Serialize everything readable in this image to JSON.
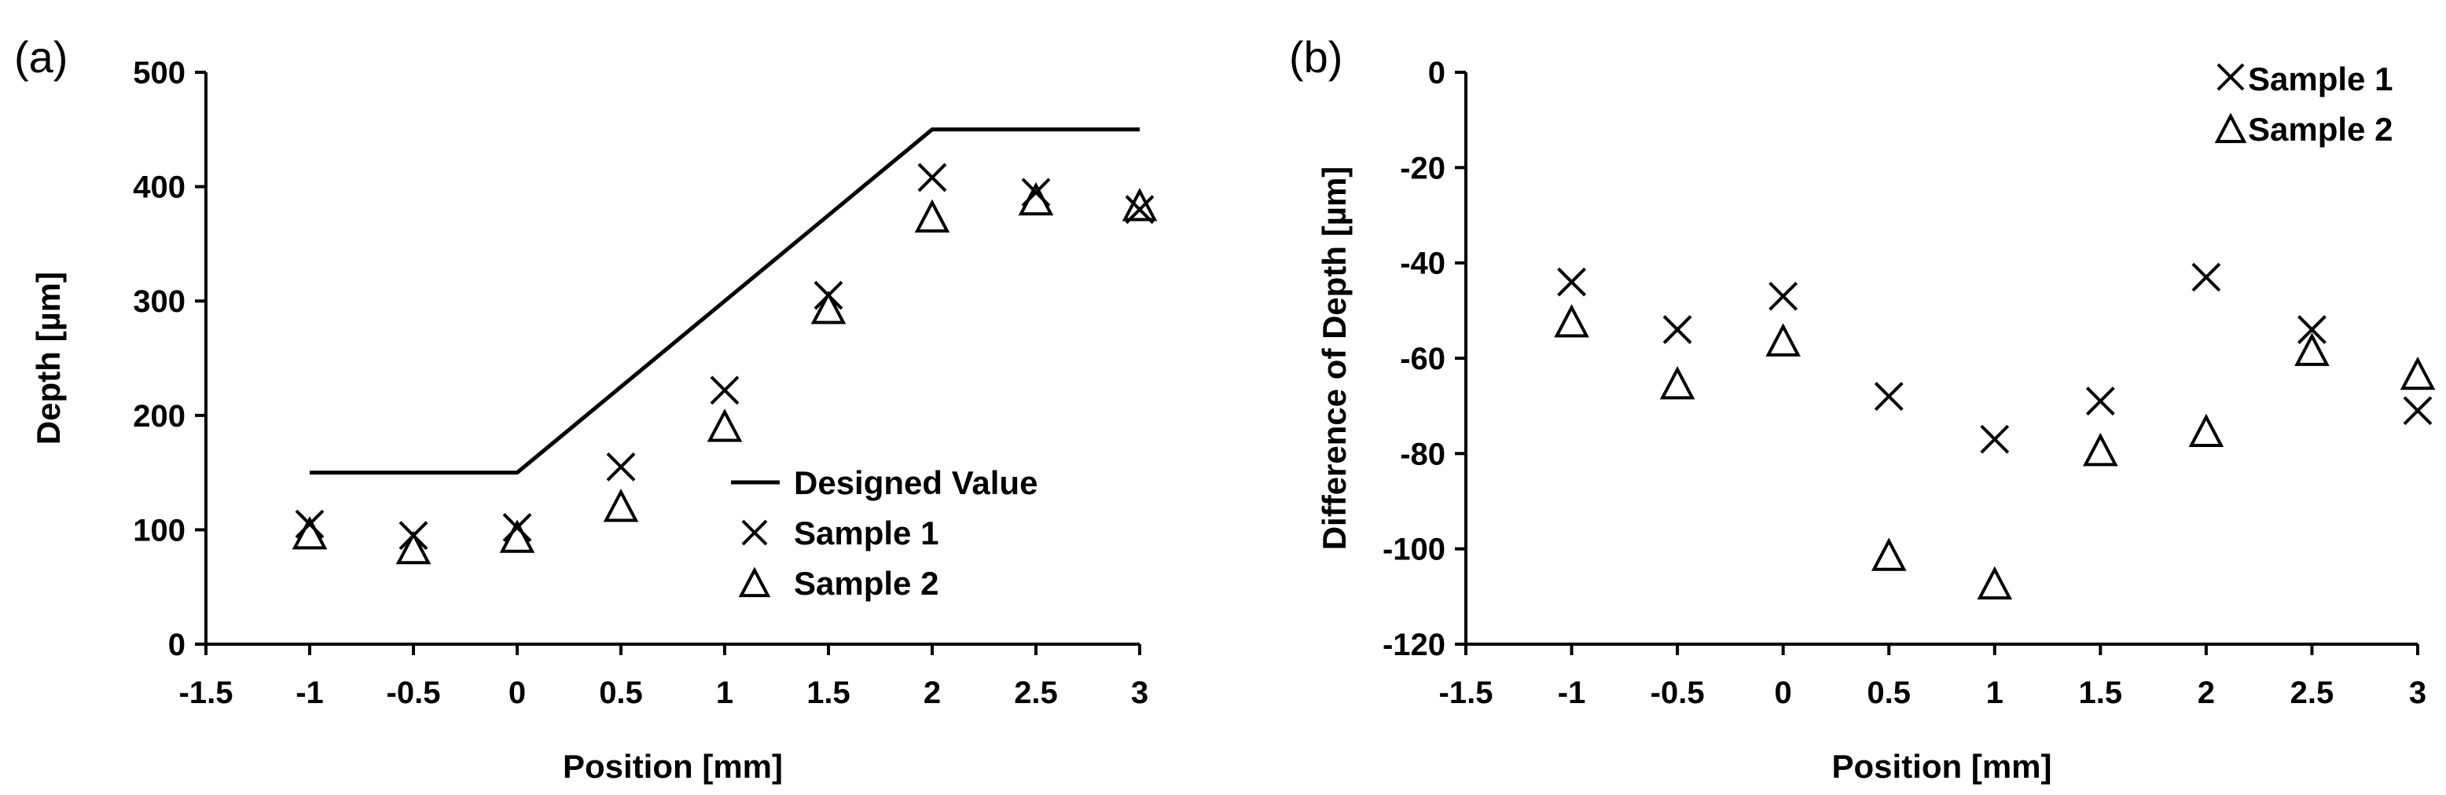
{
  "chart_data": [
    {
      "type": "scatter",
      "panel": "(a)",
      "xlabel": "Position  [mm]",
      "ylabel": "Depth [µm]",
      "xlim": [
        -1.5,
        3
      ],
      "ylim": [
        0,
        500
      ],
      "xticks": [
        "-1.5",
        "-1",
        "-0.5",
        "0",
        "0.5",
        "1",
        "1.5",
        "2",
        "2.5",
        "3"
      ],
      "yticks": [
        "0",
        "100",
        "200",
        "300",
        "400",
        "500"
      ],
      "grid": false,
      "legend_position": "bottom-right",
      "series": [
        {
          "name": "Designed Value",
          "style": "line",
          "x": [
            -1,
            0,
            2,
            3
          ],
          "y": [
            150,
            150,
            450,
            450
          ]
        },
        {
          "name": "Sample 1",
          "style": "cross",
          "x": [
            -1,
            -0.5,
            0,
            0.5,
            1,
            1.5,
            2,
            2.5,
            3
          ],
          "y": [
            105,
            95,
            102,
            155,
            222,
            305,
            408,
            395,
            380
          ]
        },
        {
          "name": "Sample 2",
          "style": "triangle",
          "x": [
            -1,
            -0.5,
            0,
            0.5,
            1,
            1.5,
            2,
            2.5,
            3
          ],
          "y": [
            98,
            85,
            95,
            122,
            192,
            295,
            375,
            390,
            385
          ]
        }
      ]
    },
    {
      "type": "scatter",
      "panel": "(b)",
      "xlabel": "Position  [mm]",
      "ylabel": "Difference of Depth [µm]",
      "xlim": [
        -1.5,
        3
      ],
      "ylim": [
        -120,
        0
      ],
      "xticks": [
        "-1.5",
        "-1",
        "-0.5",
        "0",
        "0.5",
        "1",
        "1.5",
        "2",
        "2.5",
        "3"
      ],
      "yticks": [
        "-120",
        "-100",
        "-80",
        "-60",
        "-40",
        "-20",
        "0"
      ],
      "grid": false,
      "legend_position": "top-right",
      "series": [
        {
          "name": "Sample 1",
          "style": "cross",
          "x": [
            -1,
            -0.5,
            0,
            0.5,
            1,
            1.5,
            2,
            2.5,
            3
          ],
          "y": [
            -44,
            -54,
            -47,
            -68,
            -77,
            -69,
            -43,
            -54,
            -71
          ]
        },
        {
          "name": "Sample 2",
          "style": "triangle",
          "x": [
            -1,
            -0.5,
            0,
            0.5,
            1,
            1.5,
            2,
            2.5,
            3
          ],
          "y": [
            -52,
            -65,
            -56,
            -101,
            -107,
            -79,
            -75,
            -58,
            -63
          ]
        }
      ]
    }
  ]
}
